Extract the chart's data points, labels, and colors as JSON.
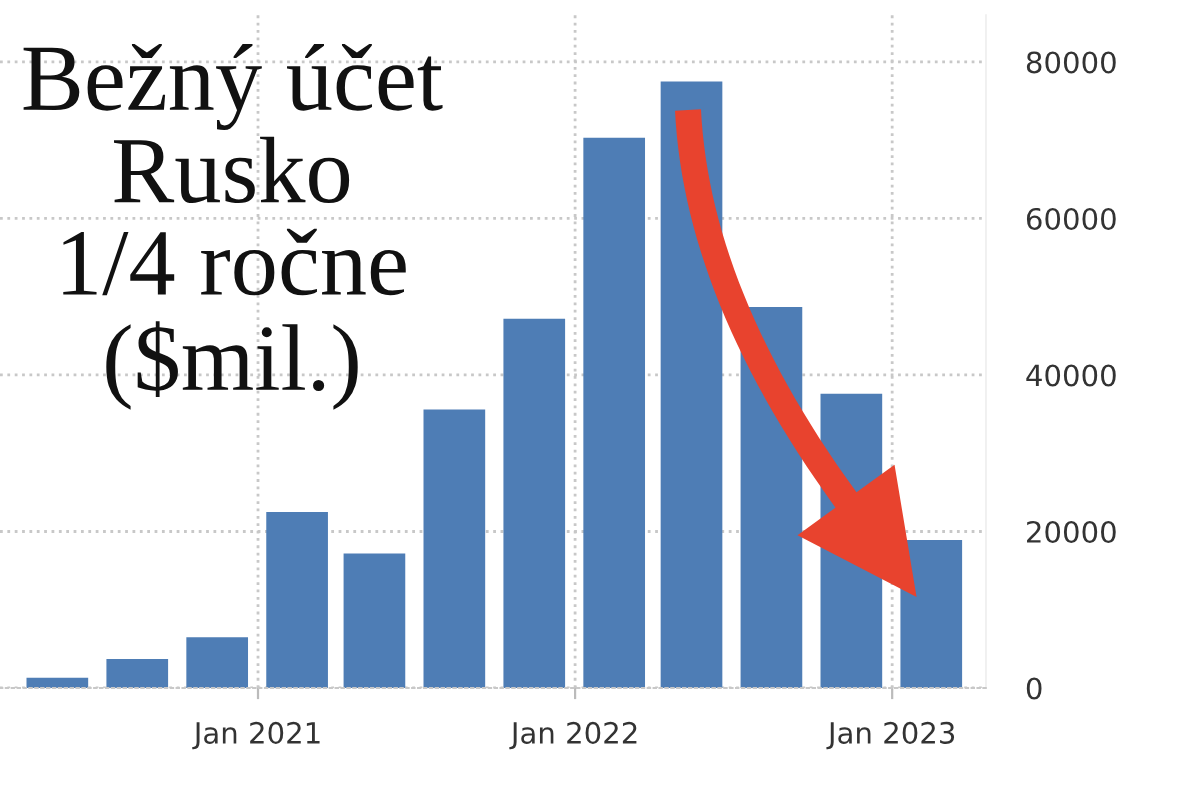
{
  "chart_data": {
    "type": "bar",
    "title": "Bežný účet\nRusko\n1/4 ročne\n($mil.)",
    "x": [
      "2020-05-15",
      "2020-08-15",
      "2020-11-15",
      "2021-02-15",
      "2021-05-15",
      "2021-08-15",
      "2021-11-15",
      "2022-02-15",
      "2022-05-15",
      "2022-08-15",
      "2022-11-15",
      "2023-02-15"
    ],
    "values": [
      1300,
      3700,
      6500,
      22500,
      17200,
      35600,
      47200,
      70300,
      77500,
      48700,
      37600,
      18900
    ],
    "color": "#4e7db5",
    "xlim": [
      "2020-03-10",
      "2023-04-19"
    ],
    "xticks": [
      {
        "value": "2021-01-01",
        "label": "Jan 2021"
      },
      {
        "value": "2022-01-01",
        "label": "Jan 2022"
      },
      {
        "value": "2023-01-01",
        "label": "Jan 2023"
      }
    ],
    "ylim": [
      0,
      86000
    ],
    "yticks": [
      0,
      20000,
      40000,
      60000,
      80000
    ],
    "grid": true
  }
}
